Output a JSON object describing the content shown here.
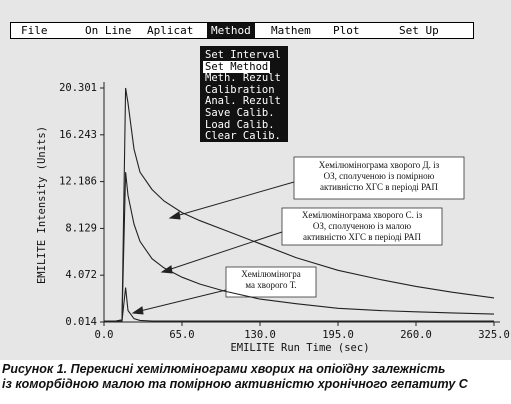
{
  "menu": [
    "File",
    "On Line",
    "Aplicat",
    "Method",
    "Mathem",
    "Plot",
    "Set Up"
  ],
  "dropdown": [
    "Set Interval",
    "Set Method",
    "Meth. Rezult",
    "Calibration",
    "Anal. Rezult",
    "Save Calib.",
    "Load Calib.",
    "Clear Calib."
  ],
  "caption": [
    "Рисунок 1. Перекисні хемілюмінограми хворих на опіоїдну залежність",
    "із коморбідною малою та помірною активністю хронічного гепатиту С"
  ],
  "chart_data": {
    "type": "line",
    "x_label": "EMILITE Run Time (sec)",
    "y_label": "EMILITE Intensity (Units)",
    "x": [
      0,
      10,
      15,
      18,
      20,
      25,
      30,
      40,
      50,
      65,
      80,
      100,
      130,
      160,
      195,
      230,
      260,
      290,
      325
    ],
    "series": [
      {
        "color": "#222222",
        "values": [
          0.1,
          0.1,
          0.2,
          20.3,
          19,
          15,
          13,
          11.5,
          10.5,
          9.5,
          8.8,
          8,
          6.8,
          5.6,
          4.5,
          3.7,
          3.1,
          2.6,
          2.1
        ]
      },
      {
        "color": "#222222",
        "values": [
          0.1,
          0.1,
          0.2,
          13,
          11,
          8.5,
          7,
          5.5,
          4.7,
          3.9,
          3.3,
          2.7,
          2,
          1.6,
          1.2,
          1,
          0.9,
          0.8,
          0.7
        ]
      },
      {
        "color": "#222222",
        "values": [
          0.05,
          0.05,
          0.1,
          3,
          1,
          0.3,
          0.15,
          0.1,
          0.1,
          0.1,
          0.1,
          0.1,
          0.1,
          0.1,
          0.1,
          0.1,
          0.1,
          0.1,
          0.1
        ]
      }
    ],
    "xlim": [
      0,
      325
    ],
    "xticks": [
      {
        "value": 0,
        "label": "0.0"
      },
      {
        "value": 65,
        "label": "65.0"
      },
      {
        "value": 130,
        "label": "130.0"
      },
      {
        "value": 195,
        "label": "195.0"
      },
      {
        "value": 260,
        "label": "260.0"
      },
      {
        "value": 325,
        "label": "325.0"
      }
    ],
    "ylim": [
      0.014,
      20.301
    ],
    "yticks": [
      0.014,
      4.072,
      8.129,
      12.186,
      16.243,
      20.301
    ],
    "annotations": [
      {
        "lines": [
          "Хемілюмінограма хворого Д. із",
          "ОЗ, сполученою із помірною",
          "активністю ХГС в періоді РАП"
        ]
      },
      {
        "lines": [
          "Хемілюмінограма хворого С. із",
          "ОЗ, сполученою із малою",
          "активністю ХГС в періоді РАП"
        ]
      },
      {
        "lines": [
          "Хемілюміногра",
          "ма хворого Т."
        ]
      }
    ]
  }
}
